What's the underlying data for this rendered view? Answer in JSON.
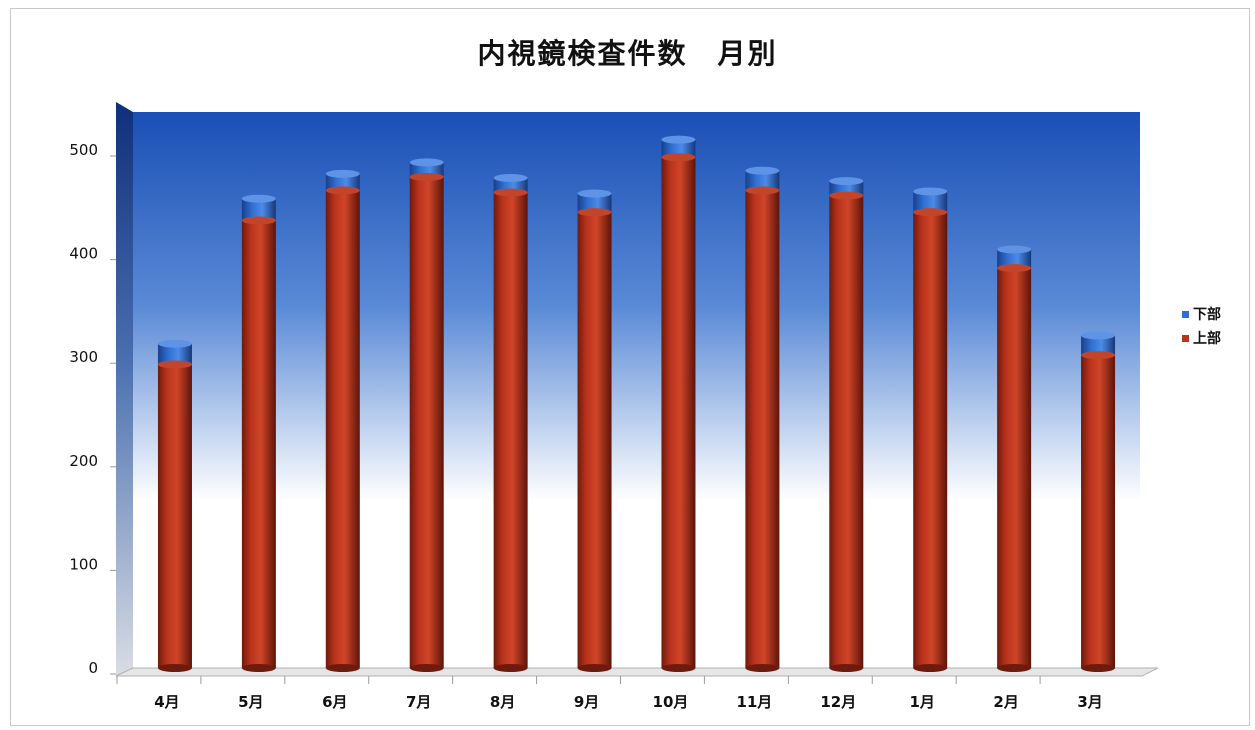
{
  "chart_data": {
    "type": "bar",
    "stacked": true,
    "title": "内視鏡検査件数　月別",
    "categories": [
      "4月",
      "5月",
      "6月",
      "7月",
      "8月",
      "9月",
      "10月",
      "11月",
      "12月",
      "1月",
      "2月",
      "3月"
    ],
    "series": [
      {
        "name": "上部",
        "color": "#b8321c",
        "values": [
          293,
          432,
          461,
          474,
          459,
          440,
          493,
          461,
          456,
          440,
          386,
          302
        ]
      },
      {
        "name": "下部",
        "color": "#2f6fd1",
        "values": [
          20,
          21,
          16,
          14,
          14,
          18,
          17,
          19,
          14,
          20,
          18,
          19
        ]
      }
    ],
    "yticks": [
      "0",
      "100",
      "200",
      "300",
      "400",
      "500"
    ],
    "ylim": [
      0,
      550
    ],
    "grid": false,
    "legend_position": "right"
  }
}
